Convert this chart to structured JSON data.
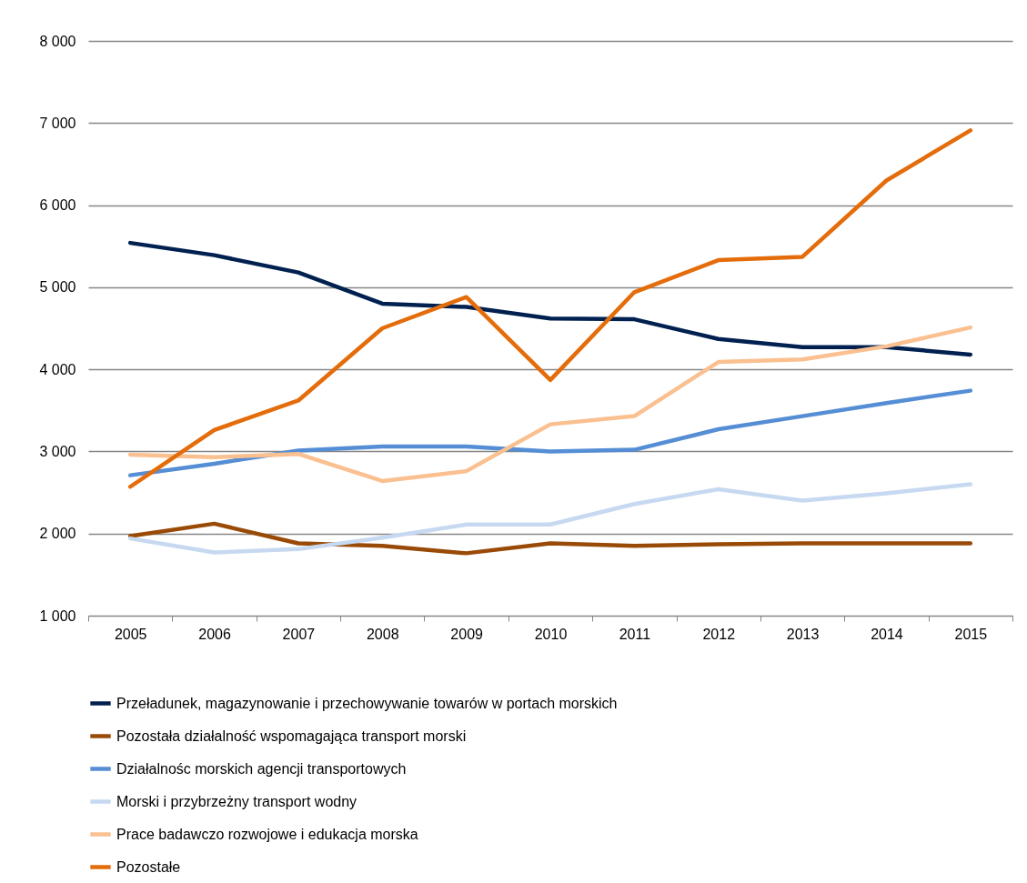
{
  "chart_data": {
    "type": "line",
    "categories": [
      "2005",
      "2006",
      "2007",
      "2008",
      "2009",
      "2010",
      "2011",
      "2012",
      "2013",
      "2014",
      "2015"
    ],
    "ylim": [
      1000,
      8000
    ],
    "yticks": [
      {
        "value": 1000,
        "label": "1 000"
      },
      {
        "value": 2000,
        "label": "2 000"
      },
      {
        "value": 3000,
        "label": "3 000"
      },
      {
        "value": 4000,
        "label": "4 000"
      },
      {
        "value": 5000,
        "label": "5 000"
      },
      {
        "value": 6000,
        "label": "6 000"
      },
      {
        "value": 7000,
        "label": "7 000"
      },
      {
        "value": 8000,
        "label": "8 000"
      }
    ],
    "grid": "y",
    "legend": "bottom",
    "marker": "none",
    "line_style": "solid",
    "series": [
      {
        "name": "Przeładunek, magazynowanie i przechowywanie towarów w portach morskich",
        "color": "#002050",
        "values": [
          5540,
          5390,
          5180,
          4800,
          4760,
          4620,
          4610,
          4370,
          4270,
          4270,
          4180
        ]
      },
      {
        "name": "Pozostała działalność wspomagająca transport morski",
        "color": "#994a06",
        "values": [
          1970,
          2120,
          1880,
          1850,
          1760,
          1880,
          1850,
          1870,
          1880,
          1880,
          1880
        ]
      },
      {
        "name": "Działalnośc morskich agencji transportowych",
        "color": "#558ed5",
        "values": [
          2710,
          2850,
          3010,
          3060,
          3060,
          3000,
          3020,
          3270,
          3430,
          3590,
          3740
        ]
      },
      {
        "name": "Morski i przybrzeżny transport wodny",
        "color": "#c6d9f1",
        "values": [
          1940,
          1770,
          1810,
          1950,
          2110,
          2110,
          2360,
          2540,
          2400,
          2490,
          2600
        ]
      },
      {
        "name": "Prace badawczo rozwojowe i edukacja morska",
        "color": "#fac090",
        "values": [
          2960,
          2930,
          2970,
          2640,
          2760,
          3330,
          3430,
          4090,
          4120,
          4280,
          4510
        ]
      },
      {
        "name": "Pozostałe",
        "color": "#e46c0a",
        "values": [
          2570,
          3260,
          3620,
          4500,
          4880,
          3870,
          4940,
          5330,
          5370,
          6300,
          6910
        ]
      }
    ]
  }
}
